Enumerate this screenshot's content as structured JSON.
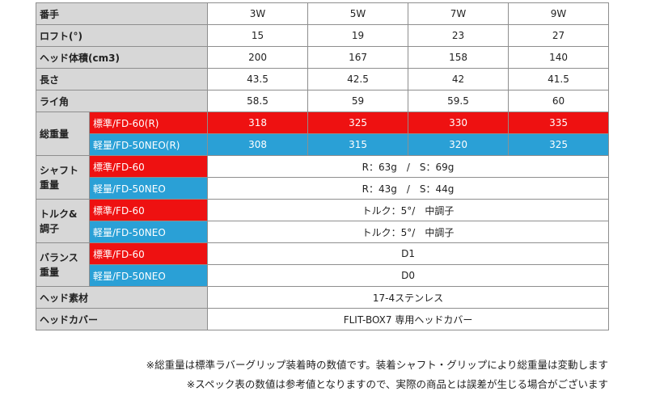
{
  "colors": {
    "standard": "#ee1111",
    "light": "#2aa0d6",
    "label_bg": "#d7d7d7",
    "border": "#8e8e8e"
  },
  "table": {
    "header": {
      "label": "番手",
      "cols": [
        "3W",
        "5W",
        "7W",
        "9W"
      ]
    },
    "loft": {
      "label": "ロフト(°)",
      "values": [
        "15",
        "19",
        "23",
        "27"
      ]
    },
    "head_volume": {
      "label": "ヘッド体積(cm3)",
      "values": [
        "200",
        "167",
        "158",
        "140"
      ]
    },
    "length": {
      "label": "長さ",
      "values": [
        "43.5",
        "42.5",
        "42",
        "41.5"
      ]
    },
    "lie": {
      "label": "ライ角",
      "values": [
        "58.5",
        "59",
        "59.5",
        "60"
      ]
    },
    "total_weight": {
      "label": "総重量",
      "standard": {
        "name": "標準/FD-60(R)",
        "values": [
          "318",
          "325",
          "330",
          "335"
        ]
      },
      "light": {
        "name": "軽量/FD-50NEO(R)",
        "values": [
          "308",
          "315",
          "320",
          "325"
        ]
      }
    },
    "shaft_weight": {
      "label": "シャフト重量",
      "standard": {
        "name": "標準/FD-60",
        "value": "R：63g　/　S：69g"
      },
      "light": {
        "name": "軽量/FD-50NEO",
        "value": "R：43g　/　S：44g"
      }
    },
    "torque": {
      "label": "トルク&調子",
      "standard": {
        "name": "標準/FD-60",
        "value": "トルク：5°/　中調子"
      },
      "light": {
        "name": "軽量/FD-50NEO",
        "value": "トルク：5°/　中調子"
      }
    },
    "balance": {
      "label": "バランス重量",
      "standard": {
        "name": "標準/FD-60",
        "value": "D1"
      },
      "light": {
        "name": "軽量/FD-50NEO",
        "value": "D0"
      }
    },
    "head_material": {
      "label": "ヘッド素材",
      "value": "17-4ステンレス"
    },
    "head_cover": {
      "label": "ヘッドカバー",
      "value": "FLIT-BOX7 専用ヘッドカバー"
    }
  },
  "notes": [
    "※総重量は標準ラバーグリップ装着時の数値です。装着シャフト・グリップにより総重量は変動します",
    "※スペック表の数値は参考値となりますので、実際の商品とは誤差が生じる場合がございます"
  ]
}
